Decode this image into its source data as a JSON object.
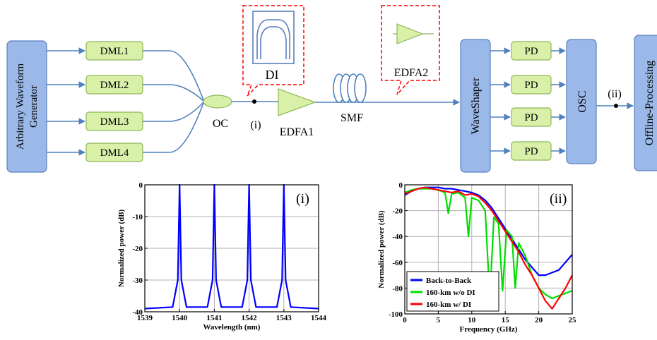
{
  "setup": {
    "awg_line1": "Arbitrary Waveform",
    "awg_line2": "Generator",
    "dml": [
      "DML1",
      "DML2",
      "DML3",
      "DML4"
    ],
    "oc": "OC",
    "di": "DI",
    "point_i": "(i)",
    "edfa1": "EDFA1",
    "smf": "SMF",
    "edfa2": "EDFA2",
    "waveshaper": "WaveShaper",
    "pd": [
      "PD",
      "PD",
      "PD",
      "PD"
    ],
    "osc": "OSC",
    "point_ii": "(ii)",
    "offline": "Offline-Processing",
    "colors": {
      "blue_box": "#9ab8e8",
      "blue_box_border": "#5a7ec0",
      "green_box": "#d8f0a8",
      "green_box_border": "#8fb85a",
      "connector": "#4f81bd",
      "callout": "#ff0000"
    }
  },
  "chart_data": [
    {
      "type": "line",
      "panel_label": "(i)",
      "xlabel": "Wavelength (nm)",
      "ylabel": "Normalized power (dB)",
      "xlim": [
        1539,
        1544
      ],
      "ylim": [
        -40,
        0
      ],
      "xticks": [
        1539,
        1540,
        1541,
        1542,
        1543,
        1544
      ],
      "yticks": [
        0,
        -10,
        -20,
        -30,
        -40
      ],
      "grid": true,
      "series": [
        {
          "color": "#0000ff",
          "x": [
            1539.0,
            1539.8,
            1539.95,
            1540.0,
            1540.05,
            1540.2,
            1540.8,
            1540.95,
            1541.0,
            1541.05,
            1541.2,
            1541.8,
            1541.95,
            1542.0,
            1542.05,
            1542.2,
            1542.8,
            1542.95,
            1543.0,
            1543.05,
            1543.2,
            1544.0
          ],
          "y": [
            -39,
            -38.5,
            -30,
            0,
            -30,
            -38.5,
            -38.5,
            -30,
            0,
            -30,
            -38.5,
            -38.5,
            -30,
            0,
            -30,
            -38.5,
            -38.5,
            -30,
            0,
            -30,
            -38.5,
            -39
          ]
        }
      ]
    },
    {
      "type": "line",
      "panel_label": "(ii)",
      "xlabel": "Frequency (GHz)",
      "ylabel": "Normalized power (dB)",
      "xlim": [
        0,
        25
      ],
      "ylim": [
        -100,
        0
      ],
      "xticks": [
        0,
        5,
        10,
        15,
        20,
        25
      ],
      "yticks": [
        0,
        -20,
        -40,
        -60,
        -80,
        -100
      ],
      "grid": true,
      "legend_position": "bottom-left",
      "series": [
        {
          "name": "Back-to-Back",
          "color": "#0000ff",
          "x": [
            0,
            1,
            2,
            3,
            4,
            5,
            6,
            7,
            8,
            9,
            10,
            11,
            12,
            13,
            14,
            15,
            16,
            17,
            18,
            19,
            20,
            21,
            22,
            23,
            24,
            25
          ],
          "y": [
            -8,
            -5,
            -3,
            -2,
            -2,
            -2,
            -3,
            -3,
            -4,
            -5,
            -6,
            -8,
            -12,
            -18,
            -26,
            -34,
            -42,
            -50,
            -58,
            -64,
            -70,
            -70,
            -68,
            -66,
            -60,
            -54
          ]
        },
        {
          "name": "160-km w/o DI",
          "color": "#00dd00",
          "x": [
            0,
            1,
            2,
            3,
            4,
            5,
            6,
            6.5,
            7,
            8,
            9,
            9.5,
            10,
            11,
            12,
            12.7,
            13.3,
            14,
            14.6,
            15.2,
            16,
            16.5,
            17,
            18,
            19,
            20,
            21,
            22,
            23,
            24,
            25
          ],
          "y": [
            -6,
            -4,
            -3,
            -3,
            -3,
            -4,
            -6,
            -22,
            -7,
            -6,
            -10,
            -40,
            -10,
            -12,
            -20,
            -88,
            -25,
            -30,
            -82,
            -35,
            -40,
            -80,
            -45,
            -55,
            -70,
            -80,
            -85,
            -88,
            -86,
            -84,
            -82
          ],
          "comment": ""
        },
        {
          "name": "160-km w/ DI",
          "color": "#ff0000",
          "x": [
            0,
            1,
            2,
            3,
            4,
            5,
            6,
            7,
            8,
            9,
            10,
            11,
            12,
            13,
            14,
            15,
            16,
            17,
            18,
            19,
            20,
            21,
            22,
            23,
            24,
            25
          ],
          "y": [
            -7,
            -5,
            -3,
            -2,
            -3,
            -4,
            -5,
            -6,
            -5,
            -8,
            -7,
            -9,
            -14,
            -20,
            -28,
            -36,
            -44,
            -52,
            -62,
            -70,
            -80,
            -90,
            -96,
            -88,
            -80,
            -70
          ]
        }
      ]
    }
  ]
}
